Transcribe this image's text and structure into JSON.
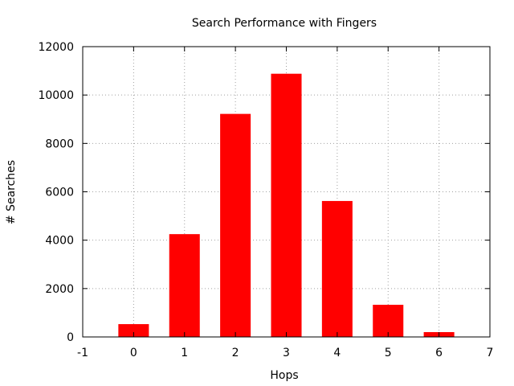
{
  "chart_data": {
    "type": "bar",
    "title": "Search Performance with Fingers",
    "xlabel": "Hops",
    "ylabel": "# Searches",
    "categories": [
      0,
      1,
      2,
      3,
      4,
      5,
      6
    ],
    "values": [
      530,
      4250,
      9220,
      10880,
      5620,
      1330,
      200
    ],
    "xlim": [
      -1,
      7
    ],
    "ylim": [
      0,
      12000
    ],
    "xticks": [
      -1,
      0,
      1,
      2,
      3,
      4,
      5,
      6,
      7
    ],
    "xtick_labels": [
      "-1",
      "0",
      "1",
      "2",
      "3",
      "4",
      "5",
      "6",
      "7"
    ],
    "yticks": [
      0,
      2000,
      4000,
      6000,
      8000,
      10000,
      12000
    ],
    "ytick_labels": [
      "0",
      "2000",
      "4000",
      "6000",
      "8000",
      "10000",
      "12000"
    ],
    "bar_width": 0.6,
    "bar_color": "#ff0000",
    "grid": true,
    "legend": false
  }
}
